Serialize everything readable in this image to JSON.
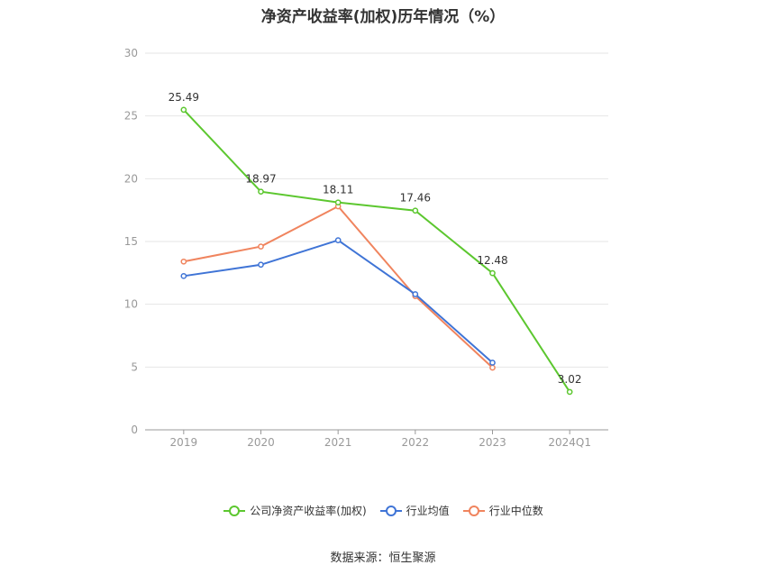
{
  "chart_data": {
    "type": "line",
    "title": "净资产收益率(加权)历年情况（%）",
    "categories": [
      "2019",
      "2020",
      "2021",
      "2022",
      "2023",
      "2024Q1"
    ],
    "ylim": [
      0,
      30
    ],
    "yticks": [
      "0",
      "5",
      "10",
      "15",
      "20",
      "25",
      "30"
    ],
    "grid": true,
    "legend_position": "bottom",
    "series": [
      {
        "name": "公司净资产收益率(加权)",
        "color": "#5cc72f",
        "values": [
          25.49,
          18.97,
          18.11,
          17.46,
          12.48,
          3.02
        ],
        "labels": [
          "25.49",
          "18.97",
          "18.11",
          "17.46",
          "12.48",
          "3.02"
        ]
      },
      {
        "name": "行业均值",
        "color": "#3f74d6",
        "values": [
          12.25,
          13.15,
          15.1,
          10.8,
          5.35,
          null
        ]
      },
      {
        "name": "行业中位数",
        "color": "#f0845e",
        "values": [
          13.4,
          14.6,
          17.8,
          10.65,
          4.95,
          null
        ]
      }
    ],
    "source": "数据来源：恒生聚源"
  }
}
